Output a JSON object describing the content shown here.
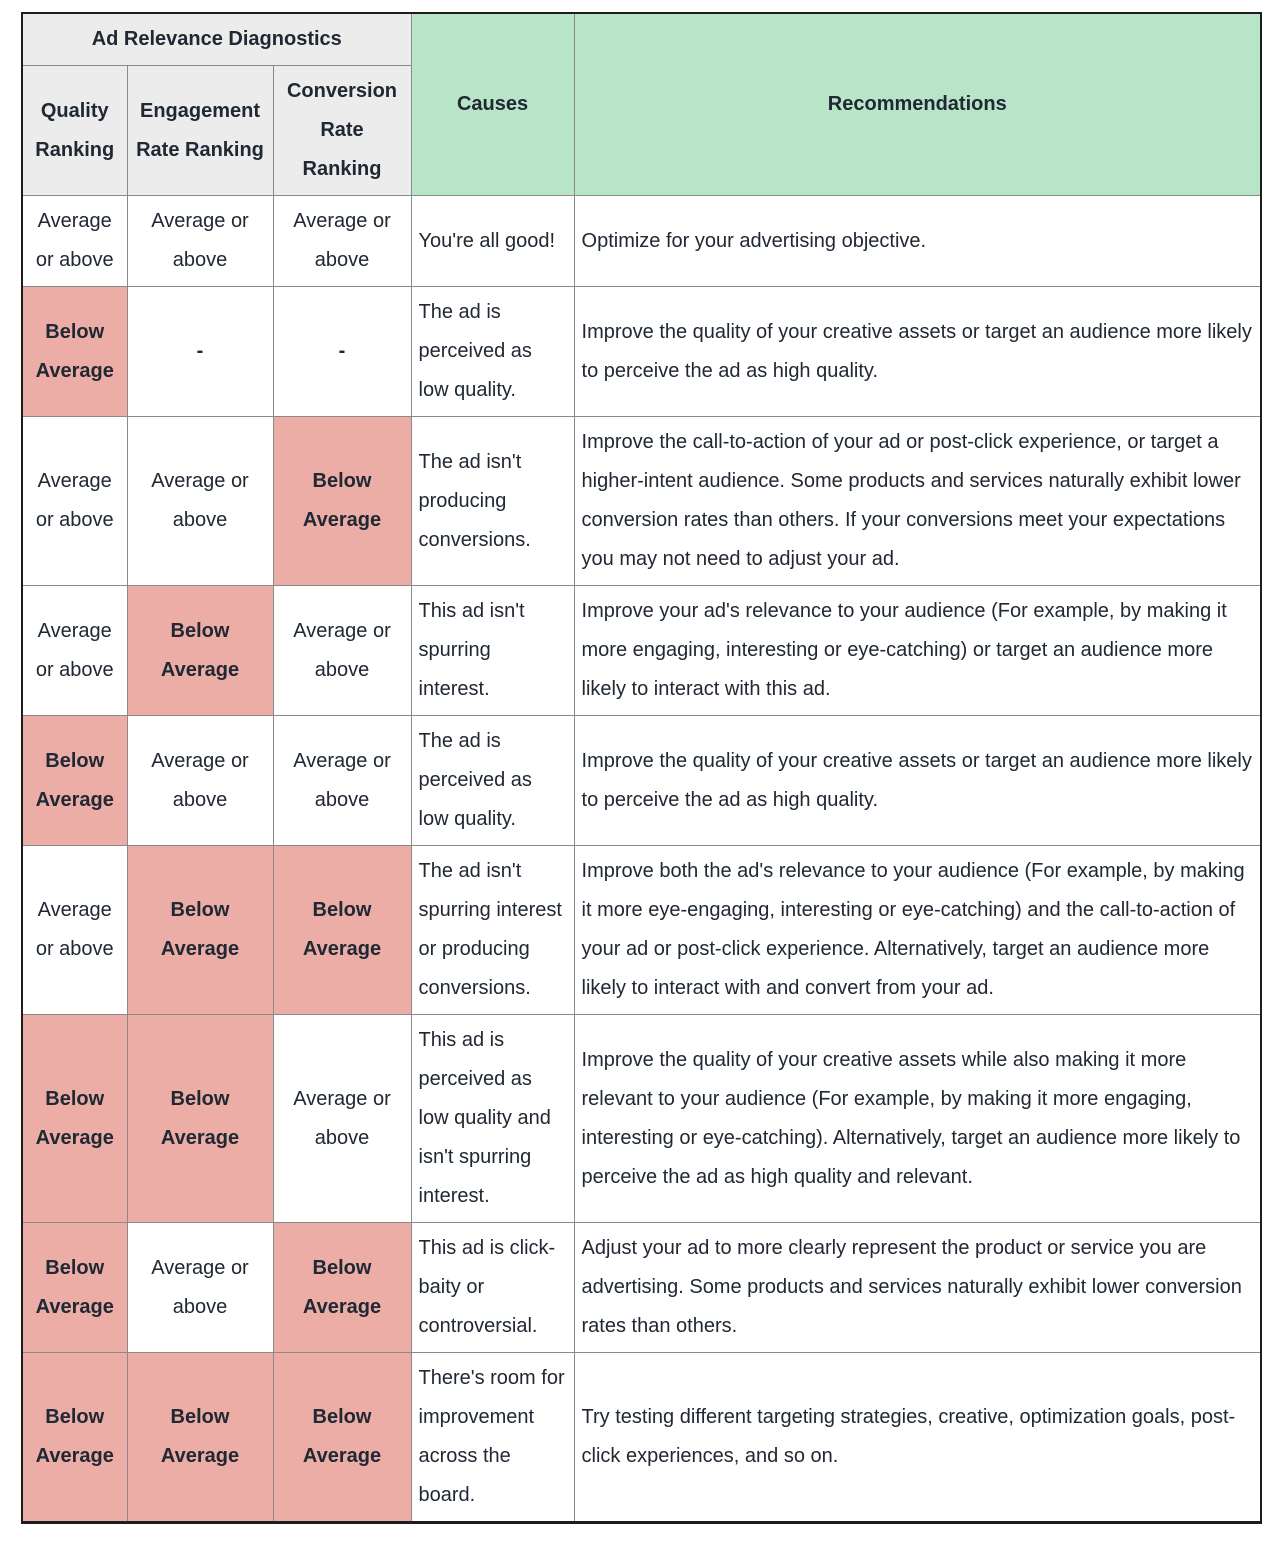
{
  "colors": {
    "header_gray": "#ececec",
    "header_green": "#b8e5c7",
    "highlight_pink": "#ebada6",
    "border_inner": "#8a8a8a",
    "border_outer": "#1d1d1d",
    "text": "#202833"
  },
  "header": {
    "group_title": "Ad Relevance Diagnostics",
    "ranking_columns": [
      "Quality Ranking",
      "Engagement Rate Ranking",
      "Conversion Rate Ranking"
    ],
    "causes_label": "Causes",
    "recommendations_label": "Recommendations"
  },
  "rows": [
    {
      "rankings": [
        {
          "text": "Average or above",
          "highlight": false,
          "bold": false
        },
        {
          "text": "Average or above",
          "highlight": false,
          "bold": false
        },
        {
          "text": "Average or above",
          "highlight": false,
          "bold": false
        }
      ],
      "cause": "You're all good!",
      "recommendation": "Optimize for your advertising objective."
    },
    {
      "rankings": [
        {
          "text": "Below Average",
          "highlight": true,
          "bold": true
        },
        {
          "text": "-",
          "highlight": false,
          "bold": true
        },
        {
          "text": "-",
          "highlight": false,
          "bold": true
        }
      ],
      "cause": "The ad is perceived as low quality.",
      "recommendation": "Improve the quality of your creative assets or target an audience more likely to perceive the ad as high quality."
    },
    {
      "rankings": [
        {
          "text": "Average or above",
          "highlight": false,
          "bold": false
        },
        {
          "text": "Average or above",
          "highlight": false,
          "bold": false
        },
        {
          "text": "Below Average",
          "highlight": true,
          "bold": true
        }
      ],
      "cause": "The ad isn't producing conversions.",
      "recommendation": "Improve the call-to-action of your ad or post-click experience, or target a higher-intent audience. Some products and services naturally exhibit lower conversion rates than others. If your conversions meet your expectations you may not need to adjust your ad."
    },
    {
      "rankings": [
        {
          "text": "Average or above",
          "highlight": false,
          "bold": false
        },
        {
          "text": "Below Average",
          "highlight": true,
          "bold": true
        },
        {
          "text": "Average or above",
          "highlight": false,
          "bold": false
        }
      ],
      "cause": "This ad isn't spurring interest.",
      "recommendation": "Improve your ad's relevance to your audience (For example, by making it more engaging, interesting or eye-catching) or target an audience more likely to interact with this ad."
    },
    {
      "rankings": [
        {
          "text": "Below Average",
          "highlight": true,
          "bold": true
        },
        {
          "text": "Average or above",
          "highlight": false,
          "bold": false
        },
        {
          "text": "Average or above",
          "highlight": false,
          "bold": false
        }
      ],
      "cause": "The ad is perceived as low quality.",
      "recommendation": "Improve the quality of your creative assets or target an audience more likely to perceive the ad as high quality."
    },
    {
      "rankings": [
        {
          "text": "Average or above",
          "highlight": false,
          "bold": false
        },
        {
          "text": "Below Average",
          "highlight": true,
          "bold": true
        },
        {
          "text": "Below Average",
          "highlight": true,
          "bold": true
        }
      ],
      "cause": "The ad isn't spurring interest or producing conversions.",
      "recommendation": "Improve both the ad's relevance to your audience (For example, by making it more eye-engaging, interesting or eye-catching) and the call-to-action of your ad or post-click experience. Alternatively, target an audience more likely to interact with and convert from your ad."
    },
    {
      "rankings": [
        {
          "text": "Below Average",
          "highlight": true,
          "bold": true
        },
        {
          "text": "Below Average",
          "highlight": true,
          "bold": true
        },
        {
          "text": "Average or above",
          "highlight": false,
          "bold": false
        }
      ],
      "cause": "This ad is perceived as low quality and isn't spurring interest.",
      "recommendation": "Improve the quality of your creative assets while also making it more relevant to your audience (For example, by making it more engaging, interesting or eye-catching). Alternatively, target an audience more likely to perceive the ad as high quality and relevant."
    },
    {
      "rankings": [
        {
          "text": "Below Average",
          "highlight": true,
          "bold": true
        },
        {
          "text": "Average or above",
          "highlight": false,
          "bold": false
        },
        {
          "text": "Below Average",
          "highlight": true,
          "bold": true
        }
      ],
      "cause": "This ad is click-baity or controversial.",
      "recommendation": "Adjust your ad to more clearly represent the product or service you are advertising. Some products and services naturally exhibit lower conversion rates than others."
    },
    {
      "rankings": [
        {
          "text": "Below Average",
          "highlight": true,
          "bold": true
        },
        {
          "text": "Below Average",
          "highlight": true,
          "bold": true
        },
        {
          "text": "Below Average",
          "highlight": true,
          "bold": true
        }
      ],
      "cause": "There's room for improvement across the board.",
      "recommendation": "Try testing different targeting strategies, creative, optimization goals, post-click experiences, and so on."
    }
  ]
}
